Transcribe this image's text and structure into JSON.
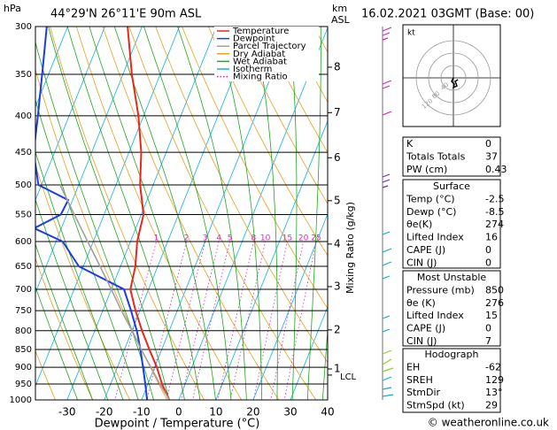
{
  "chart_data": {
    "type": "skewt",
    "title": "44°29'N 26°11'E 90m ASL",
    "date": "16.02.2021 03GMT (Base: 00)",
    "y_label": "hPa",
    "x_label": "Dewpoint / Temperature (°C)",
    "y2_label": "Mixing Ratio (g/kg)",
    "km_label": "km",
    "asl_label": "ASL",
    "xlim": [
      -38.5,
      40
    ],
    "xticks": [
      -30,
      -20,
      -10,
      0,
      10,
      20,
      30,
      40
    ],
    "ylim": [
      1000,
      300
    ],
    "yticks": [
      1000,
      950,
      900,
      850,
      800,
      750,
      700,
      650,
      600,
      550,
      500,
      450,
      400,
      350,
      300
    ],
    "log_y": true,
    "series": [
      {
        "name": "Temperature",
        "color": "#e8281c",
        "pressure": [
          1000,
          950,
          900,
          850,
          800,
          750,
          700,
          650,
          600,
          550,
          500,
          450,
          400,
          350,
          300
        ],
        "values": [
          -2.5,
          -6.2,
          -9.4,
          -13.3,
          -17.3,
          -21.2,
          -24.9,
          -26,
          -28.2,
          -29.4,
          -33.5,
          -36.7,
          -41.4,
          -47.6,
          -53.9
        ]
      },
      {
        "name": "Dewpoint",
        "color": "#1c3ce8",
        "pressure": [
          1000,
          950,
          900,
          850,
          800,
          750,
          700,
          650,
          600,
          575,
          550,
          525,
          500,
          450,
          400,
          350,
          300
        ],
        "values": [
          -8.5,
          -10.7,
          -13.1,
          -15.7,
          -18.7,
          -22.4,
          -26.6,
          -41.2,
          -48.2,
          -57.3,
          -51.6,
          -51.2,
          -60.8,
          -65.6,
          -68.4,
          -71.7,
          -75.6
        ]
      },
      {
        "name": "Parcel Trajectory",
        "color": "#a0a0a0",
        "pressure": [
          1000,
          950,
          900,
          850,
          800,
          750,
          700,
          650,
          600,
          550,
          500
        ],
        "values": [
          -2.5,
          -6.8,
          -11,
          -15.5,
          -20,
          -25,
          -30,
          -35.5,
          -41.5,
          -48,
          -55
        ]
      }
    ],
    "reference_lines": [
      {
        "name": "Dry Adiabat",
        "color": "#e8a020"
      },
      {
        "name": "Wet Adiabat",
        "color": "#1ea81e"
      },
      {
        "name": "Isotherm",
        "color": "#10b0e8"
      },
      {
        "name": "Mixing Ratio",
        "color": "#e020c0"
      }
    ],
    "mixing_ratios": [
      1,
      2,
      3,
      4,
      5,
      8,
      10,
      15,
      20,
      25
    ],
    "km_ticks": [
      {
        "value": 905,
        "label": "1"
      },
      {
        "value": 798,
        "label": "2"
      },
      {
        "value": 694,
        "label": "3"
      },
      {
        "value": 605,
        "label": "4"
      },
      {
        "value": 526,
        "label": "5"
      },
      {
        "value": 458,
        "label": "6"
      },
      {
        "value": 396,
        "label": "7"
      },
      {
        "value": 342,
        "label": "8"
      }
    ],
    "lcl": {
      "value": 923,
      "label": "LCL"
    }
  },
  "hodograph": {
    "unit": "kt",
    "rings": [
      40,
      80,
      120
    ]
  },
  "indices": {
    "rows": [
      [
        "K",
        0
      ],
      [
        "Totals Totals",
        37
      ],
      [
        "PW (cm)",
        0.43
      ]
    ]
  },
  "surface": {
    "title": "Surface",
    "rows": [
      [
        "Temp (°C)",
        -2.5
      ],
      [
        "Dewp (°C)",
        -8.5
      ],
      [
        "θe(K)",
        274
      ],
      [
        "Lifted Index",
        16
      ],
      [
        "CAPE (J)",
        0
      ],
      [
        "CIN (J)",
        0
      ]
    ]
  },
  "most_unstable": {
    "title": "Most Unstable",
    "rows": [
      [
        "Pressure (mb)",
        850
      ],
      [
        "θe (K)",
        276
      ],
      [
        "Lifted Index",
        15
      ],
      [
        "CAPE (J)",
        0
      ],
      [
        "CIN (J)",
        7
      ]
    ]
  },
  "hodograph_params": {
    "title": "Hodograph",
    "rows": [
      [
        "EH",
        -62
      ],
      [
        "SREH",
        129
      ],
      [
        "StmDir",
        "13°"
      ],
      [
        "StmSpd (kt)",
        29
      ]
    ]
  },
  "footer": "© weatheronline.co.uk"
}
